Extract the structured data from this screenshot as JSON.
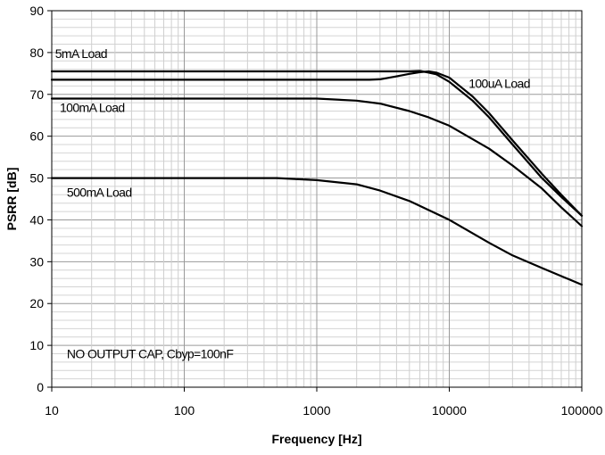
{
  "chart_data": {
    "type": "line",
    "title": "",
    "xlabel": "Frequency [Hz]",
    "ylabel": "PSRR [dB]",
    "xscale": "log",
    "xlim": [
      10,
      100000
    ],
    "ylim": [
      0,
      90
    ],
    "x_ticks": [
      "10",
      "100",
      "1000",
      "10000",
      "100000"
    ],
    "y_ticks": [
      "0",
      "10",
      "20",
      "30",
      "40",
      "50",
      "60",
      "70",
      "80",
      "90"
    ],
    "grid": true,
    "legend": "none",
    "series": [
      {
        "name": "5mA Load",
        "points": [
          [
            10,
            75.5
          ],
          [
            1000,
            75.5
          ],
          [
            3000,
            75.5
          ],
          [
            5000,
            75.5
          ],
          [
            6000,
            75.6
          ],
          [
            7000,
            75.2
          ],
          [
            8000,
            74.8
          ],
          [
            10000,
            73.0
          ],
          [
            15000,
            68.5
          ],
          [
            20000,
            64.5
          ],
          [
            30000,
            58.0
          ],
          [
            50000,
            50.0
          ],
          [
            70000,
            45.5
          ],
          [
            100000,
            41.0
          ]
        ]
      },
      {
        "name": "100uA Load",
        "points": [
          [
            10,
            73.5
          ],
          [
            1000,
            73.5
          ],
          [
            2500,
            73.5
          ],
          [
            3000,
            73.6
          ],
          [
            4000,
            74.3
          ],
          [
            5000,
            74.9
          ],
          [
            6000,
            75.3
          ],
          [
            7000,
            75.5
          ],
          [
            8000,
            75.2
          ],
          [
            10000,
            74.0
          ],
          [
            15000,
            69.5
          ],
          [
            20000,
            65.5
          ],
          [
            30000,
            59.0
          ],
          [
            50000,
            51.0
          ],
          [
            70000,
            46.0
          ],
          [
            100000,
            41.0
          ]
        ]
      },
      {
        "name": "100mA Load",
        "points": [
          [
            10,
            69.0
          ],
          [
            1000,
            69.0
          ],
          [
            2000,
            68.5
          ],
          [
            3000,
            67.8
          ],
          [
            5000,
            66.0
          ],
          [
            7000,
            64.5
          ],
          [
            10000,
            62.5
          ],
          [
            20000,
            57.0
          ],
          [
            30000,
            53.0
          ],
          [
            50000,
            47.5
          ],
          [
            70000,
            43.0
          ],
          [
            100000,
            38.5
          ]
        ]
      },
      {
        "name": "500mA Load",
        "points": [
          [
            10,
            50.0
          ],
          [
            500,
            50.0
          ],
          [
            1000,
            49.5
          ],
          [
            2000,
            48.5
          ],
          [
            3000,
            47.0
          ],
          [
            5000,
            44.5
          ],
          [
            10000,
            40.0
          ],
          [
            20000,
            34.5
          ],
          [
            30000,
            31.5
          ],
          [
            50000,
            28.5
          ],
          [
            100000,
            24.5
          ]
        ]
      }
    ],
    "annotations": [
      {
        "text": "5mA Load",
        "x": 10.6,
        "y": 78.7
      },
      {
        "text": "100uA Load",
        "x": 14000,
        "y": 71.5
      },
      {
        "text": "100mA Load",
        "x": 11.5,
        "y": 65.8
      },
      {
        "text": "500mA Load",
        "x": 13,
        "y": 45.5
      },
      {
        "text": "NO OUTPUT CAP, Cbyp=100nF",
        "x": 13,
        "y": 6.9
      }
    ]
  }
}
